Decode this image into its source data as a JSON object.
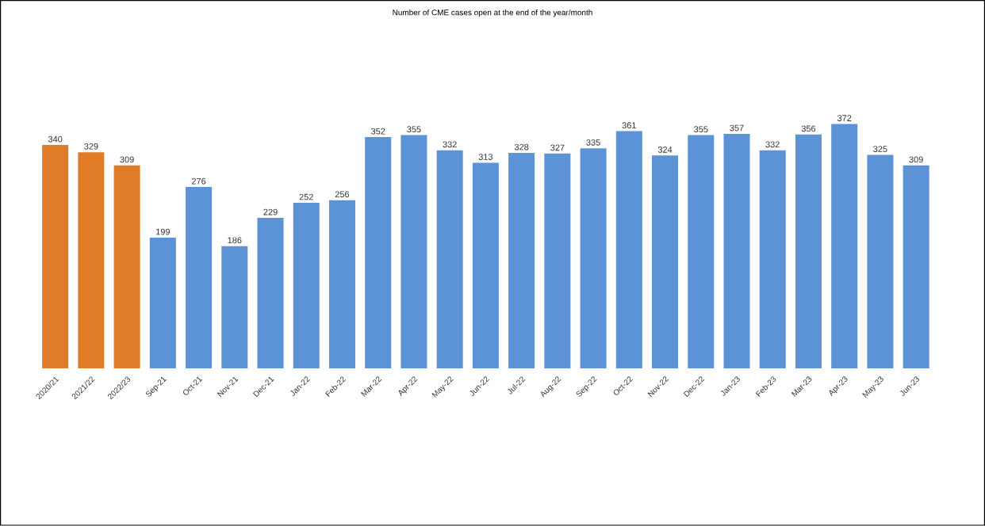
{
  "chart_data": {
    "type": "bar",
    "title": "Number of CME cases open at the end of the year/month",
    "categories": [
      "2020/21",
      "2021/22",
      "2022/23",
      "Sep-21",
      "Oct-21",
      "Nov-21",
      "Dec-21",
      "Jan-22",
      "Feb-22",
      "Mar-22",
      "Apr-22",
      "May-22",
      "Jun-22",
      "Jul-22",
      "Aug-22",
      "Sep-22",
      "Oct-22",
      "Nov-22",
      "Dec-22",
      "Jan-23",
      "Feb-23",
      "Mar-23",
      "Apr-23",
      "May-23",
      "Jun-23"
    ],
    "values": [
      340,
      329,
      309,
      199,
      276,
      186,
      229,
      252,
      256,
      352,
      355,
      332,
      313,
      328,
      327,
      335,
      361,
      324,
      355,
      357,
      332,
      356,
      372,
      325,
      309
    ],
    "colors": [
      "#e07b28",
      "#e07b28",
      "#e07b28",
      "#5b93d6",
      "#5b93d6",
      "#5b93d6",
      "#5b93d6",
      "#5b93d6",
      "#5b93d6",
      "#5b93d6",
      "#5b93d6",
      "#5b93d6",
      "#5b93d6",
      "#5b93d6",
      "#5b93d6",
      "#5b93d6",
      "#5b93d6",
      "#5b93d6",
      "#5b93d6",
      "#5b93d6",
      "#5b93d6",
      "#5b93d6",
      "#5b93d6",
      "#5b93d6",
      "#5b93d6"
    ],
    "data_labels": true
  }
}
